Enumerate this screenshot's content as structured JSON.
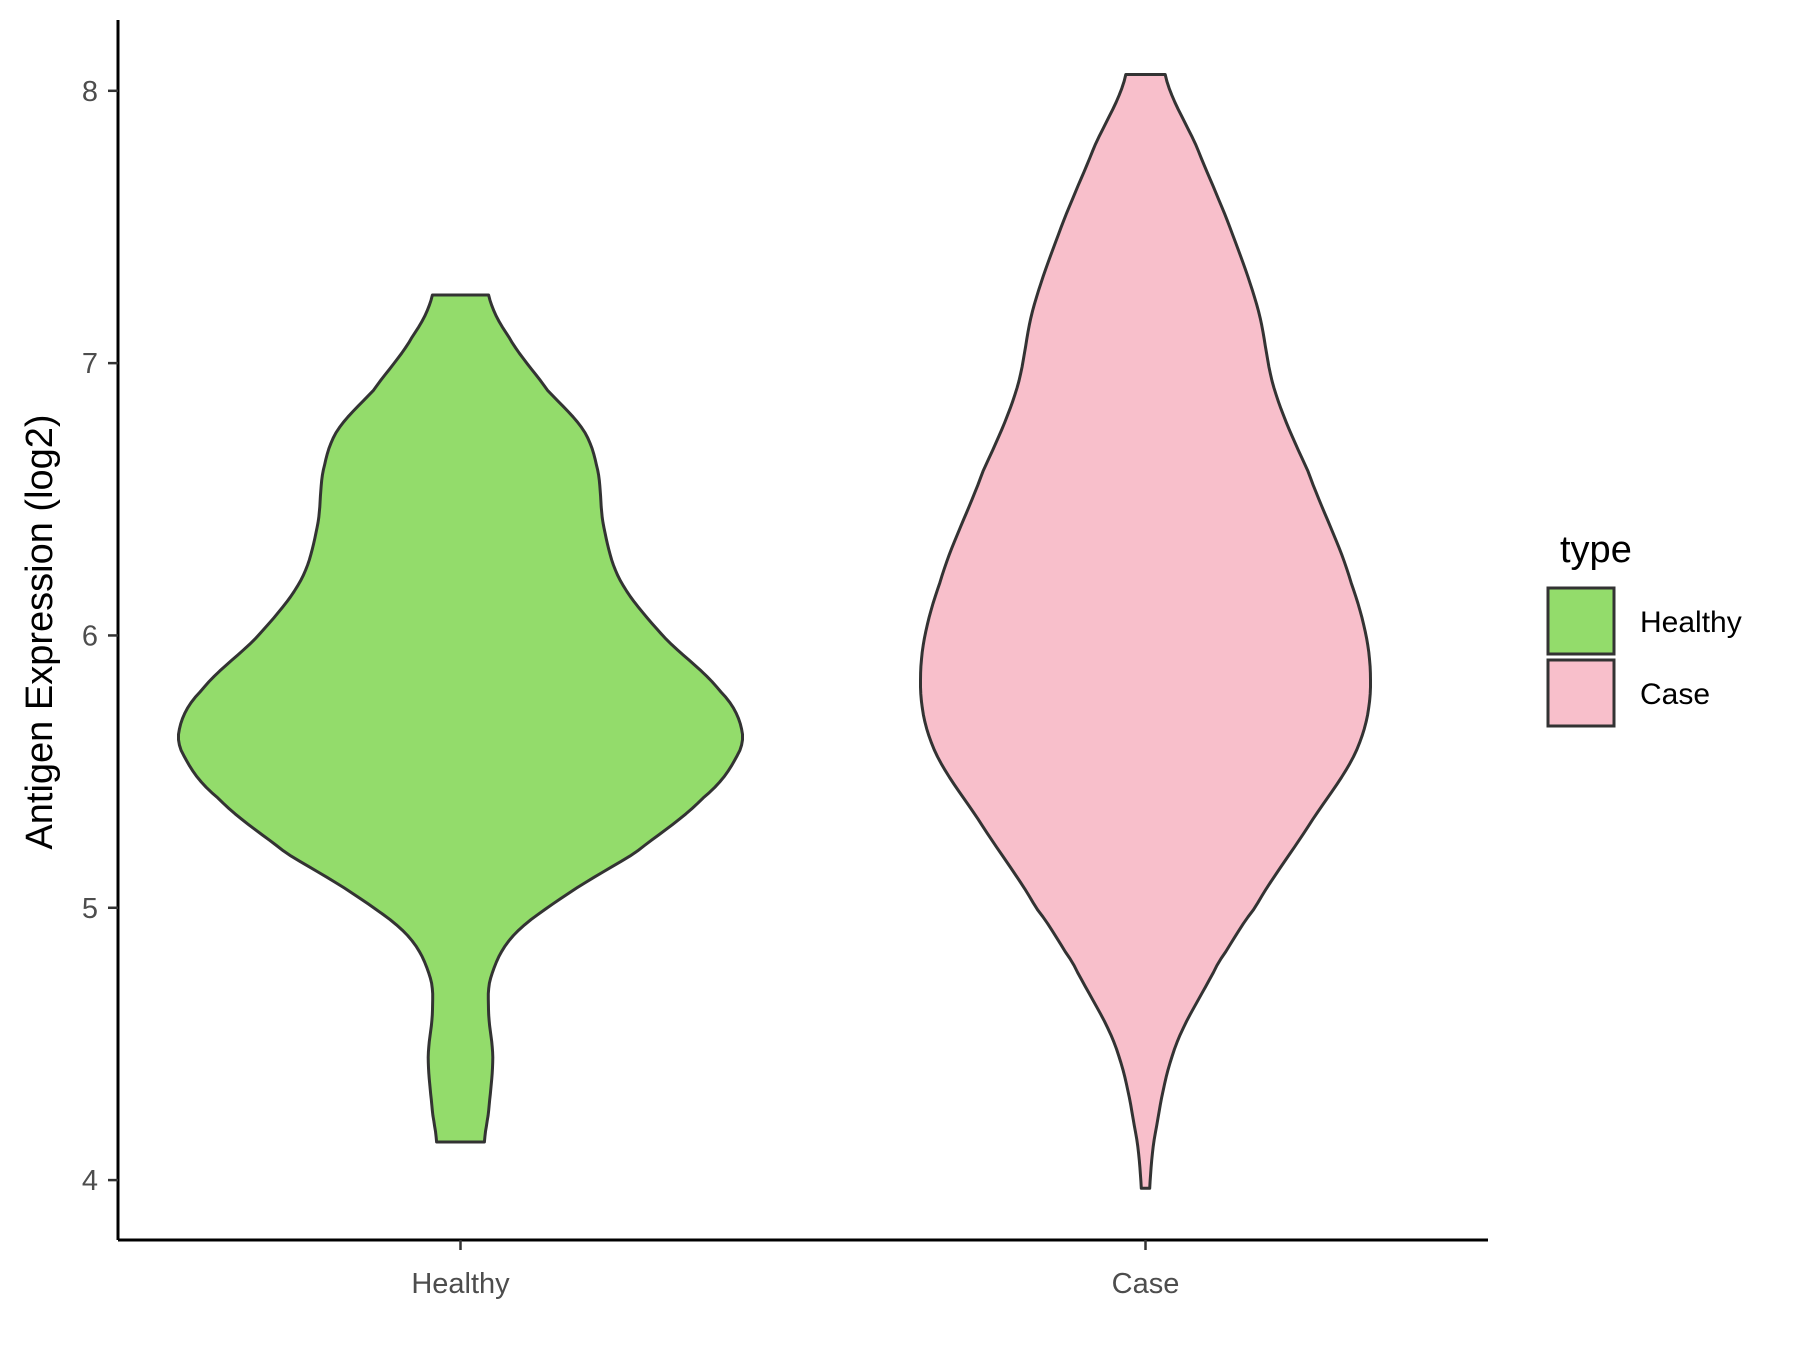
{
  "chart_data": {
    "type": "violin",
    "title": "",
    "xlabel": "",
    "ylabel": "Antigen Expression (log2)",
    "ylim": [
      3.78,
      8.26
    ],
    "yticks": [
      4,
      5,
      6,
      7,
      8
    ],
    "ytick_labels": [
      "4",
      "5",
      "6",
      "7",
      "8"
    ],
    "categories": [
      "Healthy",
      "Case"
    ],
    "grid": false,
    "legend": {
      "title": "type",
      "placement": "right",
      "entries": [
        "Healthy",
        "Case"
      ]
    },
    "series": [
      {
        "name": "Healthy",
        "color": "#93dc6b",
        "min": 4.14,
        "max": 7.25,
        "profile": [
          [
            4.14,
            0.085
          ],
          [
            4.25,
            0.1
          ],
          [
            4.45,
            0.115
          ],
          [
            4.62,
            0.1
          ],
          [
            4.75,
            0.11
          ],
          [
            4.9,
            0.19
          ],
          [
            5.05,
            0.38
          ],
          [
            5.2,
            0.62
          ],
          [
            5.4,
            0.86
          ],
          [
            5.55,
            0.98
          ],
          [
            5.66,
            1.0
          ],
          [
            5.8,
            0.92
          ],
          [
            6.0,
            0.72
          ],
          [
            6.2,
            0.57
          ],
          [
            6.4,
            0.51
          ],
          [
            6.6,
            0.49
          ],
          [
            6.75,
            0.44
          ],
          [
            6.9,
            0.31
          ],
          [
            7.1,
            0.17
          ],
          [
            7.25,
            0.1
          ]
        ]
      },
      {
        "name": "Case",
        "color": "#f8bfcb",
        "min": 3.97,
        "max": 8.06,
        "profile": [
          [
            3.97,
            0.015
          ],
          [
            4.2,
            0.04
          ],
          [
            4.5,
            0.11
          ],
          [
            4.8,
            0.26
          ],
          [
            5.0,
            0.39
          ],
          [
            5.3,
            0.58
          ],
          [
            5.6,
            0.76
          ],
          [
            5.88,
            0.8
          ],
          [
            6.2,
            0.73
          ],
          [
            6.6,
            0.58
          ],
          [
            6.9,
            0.46
          ],
          [
            7.2,
            0.4
          ],
          [
            7.5,
            0.3
          ],
          [
            7.8,
            0.18
          ],
          [
            8.06,
            0.07
          ]
        ]
      }
    ]
  }
}
